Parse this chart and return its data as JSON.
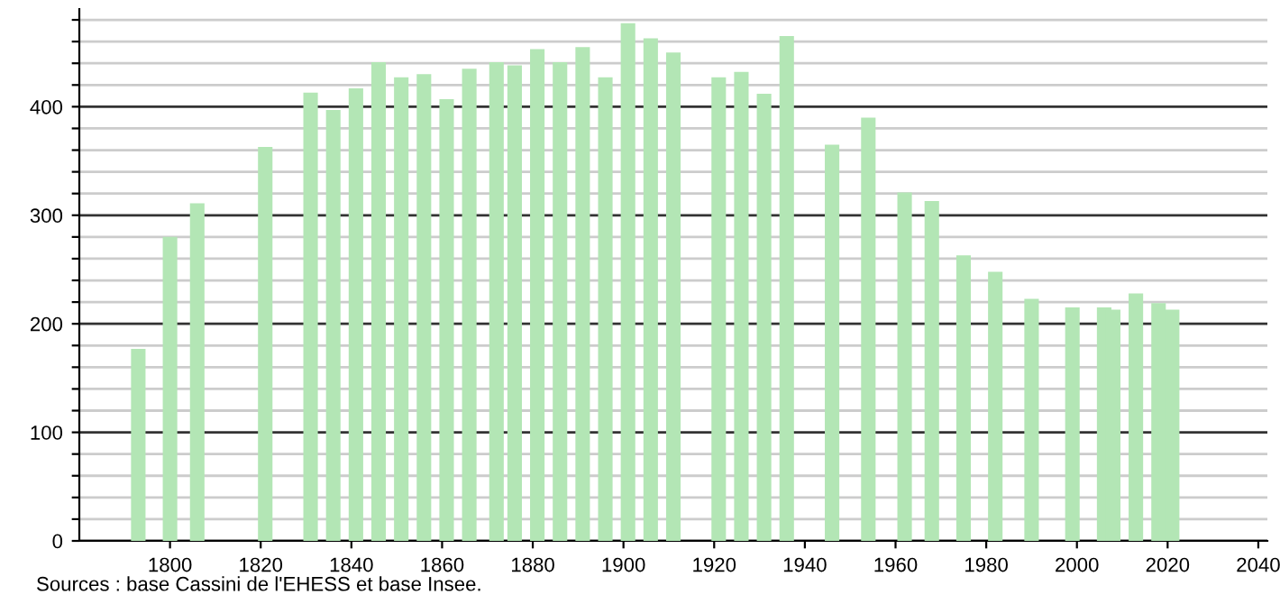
{
  "chart_data": {
    "type": "bar",
    "x": [
      1793,
      1800,
      1806,
      1821,
      1831,
      1836,
      1841,
      1846,
      1851,
      1856,
      1861,
      1866,
      1872,
      1876,
      1881,
      1886,
      1891,
      1896,
      1901,
      1906,
      1911,
      1921,
      1926,
      1931,
      1936,
      1946,
      1954,
      1962,
      1968,
      1975,
      1982,
      1990,
      1999,
      2006,
      2008,
      2013,
      2018,
      2021
    ],
    "values": [
      177,
      280,
      311,
      363,
      413,
      397,
      417,
      441,
      427,
      430,
      407,
      435,
      441,
      438,
      453,
      441,
      455,
      427,
      477,
      463,
      450,
      427,
      432,
      412,
      465,
      365,
      390,
      321,
      313,
      263,
      248,
      223,
      215,
      215,
      213,
      228,
      219,
      213
    ],
    "color": "#b3e6b5",
    "xlim": [
      1780,
      2042
    ],
    "xticks": [
      1800,
      1820,
      1840,
      1860,
      1880,
      1900,
      1920,
      1940,
      1960,
      1980,
      2000,
      2020,
      2040
    ],
    "ylim": [
      0,
      490
    ],
    "yticks": [
      0,
      {
        "value": 20,
        "label": null
      },
      {
        "value": 40,
        "label": null
      },
      {
        "value": 60,
        "label": null
      },
      {
        "value": 80,
        "label": null
      },
      100,
      {
        "value": 120,
        "label": null
      },
      {
        "value": 140,
        "label": null
      },
      {
        "value": 160,
        "label": null
      },
      {
        "value": 180,
        "label": null
      },
      200,
      {
        "value": 220,
        "label": null
      },
      {
        "value": 240,
        "label": null
      },
      {
        "value": 260,
        "label": null
      },
      {
        "value": 280,
        "label": null
      },
      300,
      {
        "value": 320,
        "label": null
      },
      {
        "value": 340,
        "label": null
      },
      {
        "value": 360,
        "label": null
      },
      {
        "value": 380,
        "label": null
      },
      400,
      {
        "value": 420,
        "label": null
      },
      {
        "value": 440,
        "label": null
      },
      {
        "value": 460,
        "label": null
      },
      {
        "value": 480,
        "label": null
      }
    ],
    "grid": "y",
    "annotations": [
      "Sources : base Cassini de l'EHESS et base Insee."
    ]
  }
}
